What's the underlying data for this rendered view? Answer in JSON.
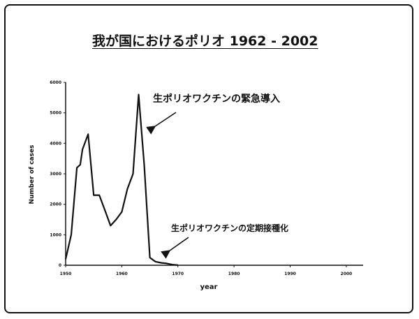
{
  "chart_data": {
    "type": "line",
    "title": "我が国におけるポリオ 1962 - 2002",
    "xlabel": "year",
    "ylabel": "Number of cases",
    "xlim": [
      1950,
      2003
    ],
    "ylim": [
      0,
      6000
    ],
    "x_ticks": [
      "1950",
      "1960",
      "1970",
      "1980",
      "1990",
      "2000"
    ],
    "y_ticks": [
      "0",
      "1000",
      "2000",
      "3000",
      "4000",
      "5000",
      "6000"
    ],
    "grid": false,
    "series": [
      {
        "x": [
          1950,
          1951,
          1952,
          1952.6,
          1953,
          1954,
          1954.5,
          1955,
          1956,
          1957,
          1958,
          1959,
          1960,
          1961,
          1962,
          1963,
          1964,
          1965,
          1966,
          1967,
          1968,
          1969,
          1970
        ],
        "y": [
          200,
          1000,
          3200,
          3300,
          3800,
          4300,
          3300,
          2300,
          2300,
          1800,
          1300,
          1500,
          1750,
          2500,
          3000,
          5600,
          3300,
          250,
          120,
          80,
          60,
          20,
          5
        ]
      }
    ],
    "annotations": [
      {
        "text": "生ポリオワクチンの緊急導入"
      },
      {
        "text": "生ポリオワクチンの定期接種化"
      }
    ]
  }
}
